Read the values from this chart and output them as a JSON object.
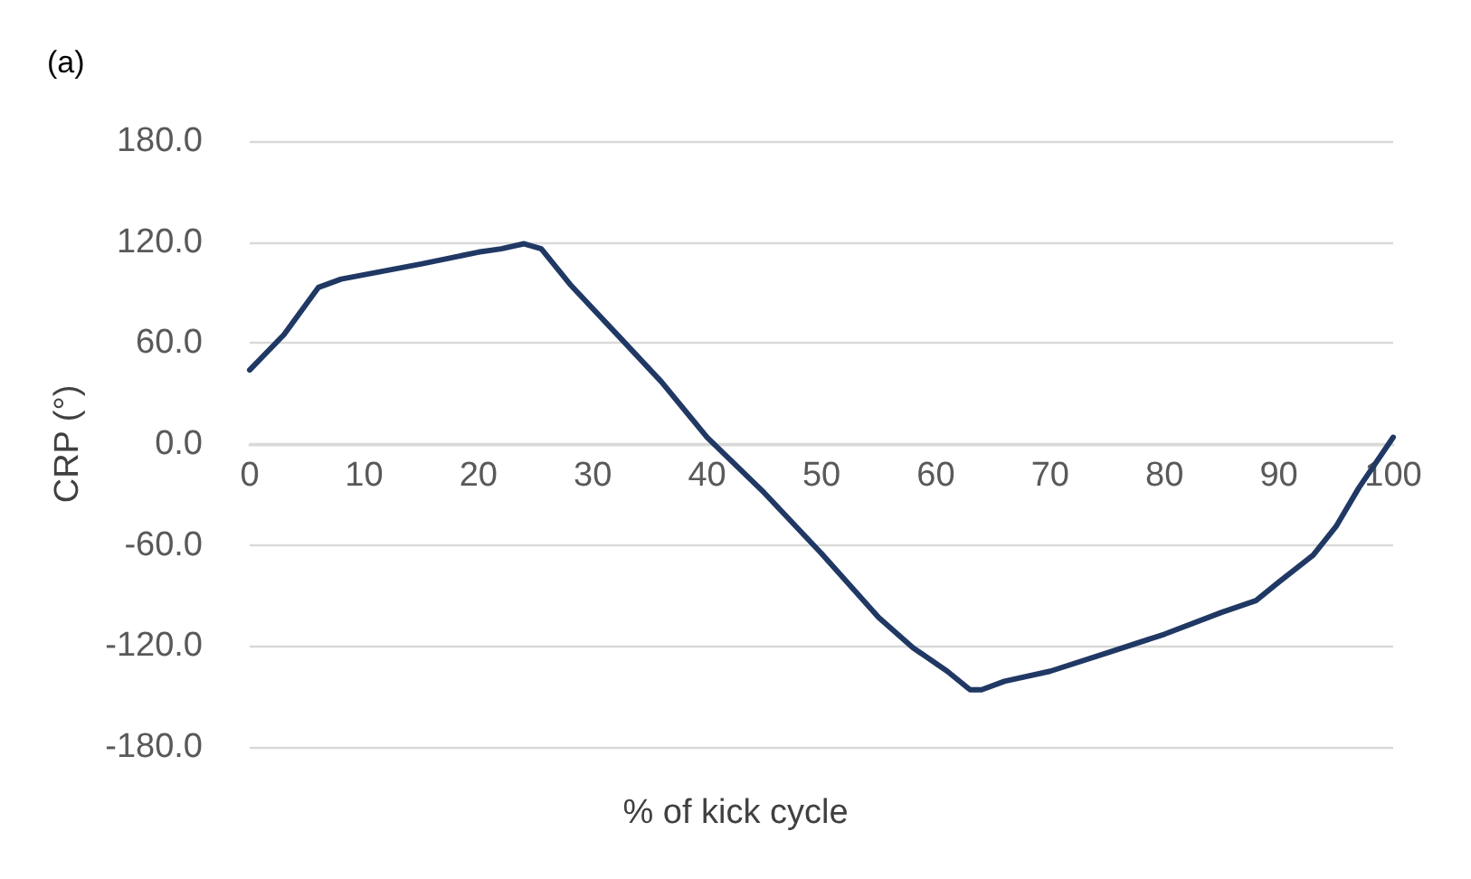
{
  "chart_data": {
    "type": "line",
    "ylabel": "CRP (°)",
    "xlabel": "% of kick cycle",
    "annotations": [
      "(a)"
    ],
    "x": [
      0,
      3,
      6,
      8,
      15,
      20,
      22,
      24,
      25.5,
      28,
      32,
      36,
      40,
      45,
      50,
      55,
      58,
      61,
      63,
      64,
      66,
      70,
      75,
      80,
      85,
      88,
      90,
      93,
      95,
      97,
      100
    ],
    "series": [
      {
        "color": "#203864",
        "values": [
          44,
          65,
          93,
          98,
          107,
          114,
          116,
          119,
          116,
          95,
          66,
          37,
          4,
          -29,
          -65,
          -103,
          -121,
          -135,
          -146,
          -146,
          -141,
          -135,
          -124,
          -113,
          -100,
          -93,
          -82,
          -66,
          -49,
          -26,
          4
        ]
      }
    ],
    "xlim": [
      0,
      100
    ],
    "xticks": [
      0,
      10,
      20,
      30,
      40,
      50,
      60,
      70,
      80,
      90,
      100
    ],
    "ylim": [
      -180,
      180
    ],
    "yticks": [
      {
        "value": -180,
        "label": "-180.0"
      },
      {
        "value": -120,
        "label": "-120.0"
      },
      {
        "value": -60,
        "label": "-60.0"
      },
      {
        "value": 0,
        "label": "0.0"
      },
      {
        "value": 60,
        "label": "60.0"
      },
      {
        "value": 120,
        "label": "120.0"
      },
      {
        "value": 180,
        "label": "180.0"
      }
    ],
    "grid": "y",
    "marker": "none",
    "line_style": "solid"
  }
}
